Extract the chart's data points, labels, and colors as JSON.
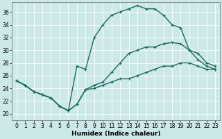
{
  "xlabel": "Humidex (Indice chaleur)",
  "ylabel": "",
  "background_color": "#cde8e8",
  "grid_color": "#b8d8d8",
  "line_color": "#1a6b5e",
  "xlim": [
    -0.5,
    23.5
  ],
  "ylim": [
    19,
    37.5
  ],
  "yticks": [
    20,
    22,
    24,
    26,
    28,
    30,
    32,
    34,
    36
  ],
  "xticks": [
    0,
    1,
    2,
    3,
    4,
    5,
    6,
    7,
    8,
    9,
    10,
    11,
    12,
    13,
    14,
    15,
    16,
    17,
    18,
    19,
    20,
    21,
    22,
    23
  ],
  "lines": [
    {
      "x": [
        0,
        1,
        2,
        3,
        4,
        5,
        6,
        7,
        8,
        9,
        10,
        11,
        12,
        13,
        14,
        15,
        16,
        17,
        18,
        19,
        20,
        21,
        22,
        23
      ],
      "y": [
        25.2,
        24.5,
        23.5,
        23.0,
        22.5,
        21.2,
        20.5,
        21.5,
        23.8,
        24.5,
        25.0,
        26.5,
        28.0,
        29.5,
        30.0,
        30.5,
        30.5,
        31.0,
        31.2,
        31.0,
        30.0,
        28.5,
        27.5,
        27.0
      ]
    },
    {
      "x": [
        0,
        1,
        2,
        3,
        4,
        5,
        6,
        7,
        8,
        9,
        10,
        11,
        12,
        13,
        14,
        15,
        16,
        17,
        18,
        19,
        20,
        21,
        22,
        23
      ],
      "y": [
        25.2,
        24.5,
        23.5,
        23.0,
        22.5,
        21.2,
        20.5,
        27.5,
        27.0,
        32.0,
        34.0,
        35.5,
        36.0,
        36.5,
        37.0,
        36.5,
        36.5,
        35.5,
        34.0,
        33.5,
        30.0,
        29.5,
        28.0,
        27.5
      ]
    },
    {
      "x": [
        0,
        1,
        2,
        3,
        4,
        5,
        6,
        7,
        8,
        9,
        10,
        11,
        12,
        13,
        14,
        15,
        16,
        17,
        18,
        19,
        20,
        21,
        22,
        23
      ],
      "y": [
        25.2,
        24.5,
        23.5,
        23.0,
        22.5,
        21.2,
        20.5,
        21.5,
        23.8,
        24.0,
        24.5,
        25.0,
        25.5,
        25.5,
        26.0,
        26.5,
        27.0,
        27.5,
        27.5,
        28.0,
        28.0,
        27.5,
        27.0,
        27.0
      ]
    }
  ],
  "marker": "+",
  "markersize": 3,
  "linewidth": 1.0,
  "markeredgewidth": 0.8,
  "axis_fontsize": 6.5,
  "tick_fontsize": 5.5,
  "grid_linewidth": 0.6,
  "spine_color": "#666666"
}
